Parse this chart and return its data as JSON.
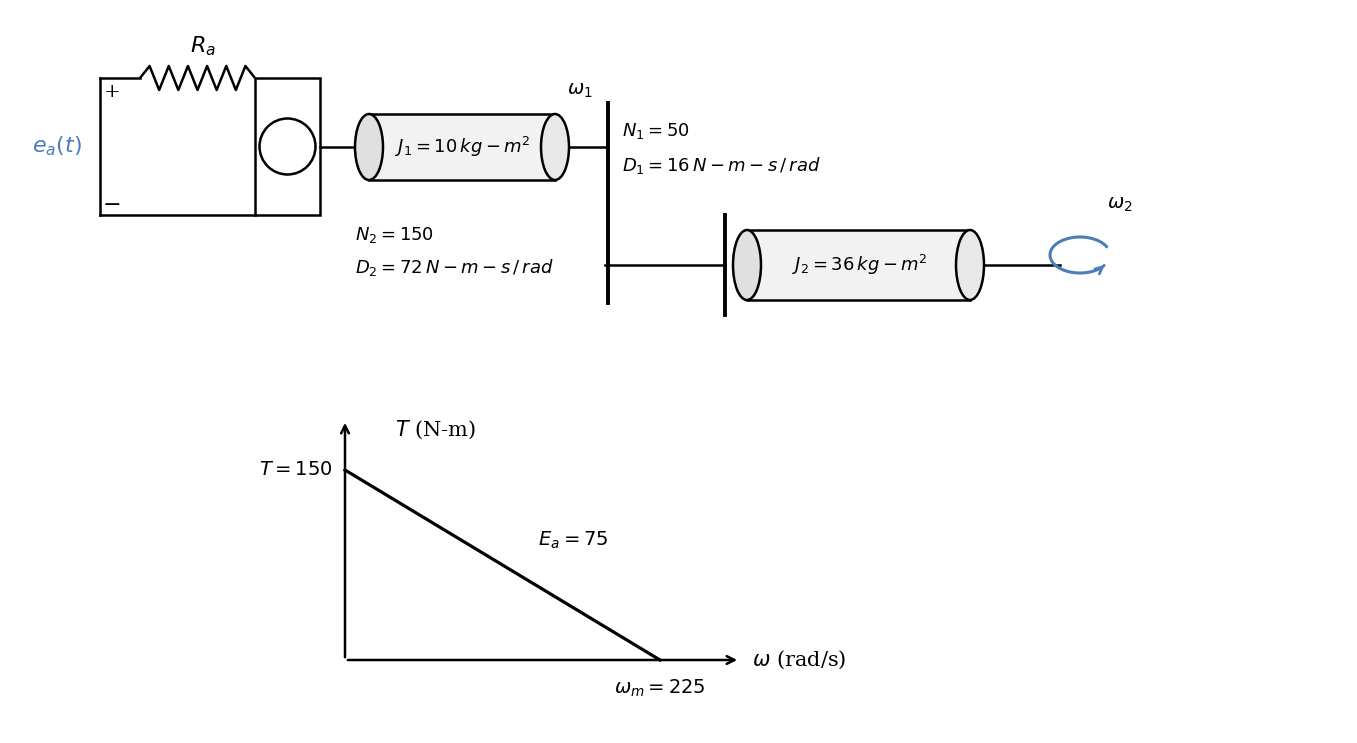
{
  "bg_color": "#ffffff",
  "text_color": "#000000",
  "blue_color": "#4a7fb5",
  "circuit": {
    "ea_label": "$e_a(t)$",
    "plus_label": "+",
    "minus_label": "−",
    "Ra_label": "$R_a$",
    "J1_label": "$J_1 = 10\\,kg - m^2$",
    "J2_label": "$J_2 = 36\\,kg - m^2$",
    "N1_label": "$N_1 = 50$",
    "N2_label": "$N_2 = 150$",
    "D1_label": "$D_1 = 16\\,N - m - s\\,/\\,rad$",
    "D2_label": "$D_2 = 72\\,N - m - s\\,/\\,rad$",
    "omega1_label": "$\\omega_1$",
    "omega2_label": "$\\omega_2$"
  },
  "graph": {
    "T_label": "$T$ (N-m)",
    "omega_label": "$\\omega$ (rad/s)",
    "T_annotation": "$T = 150$",
    "Ea_annotation": "$E_a = 75$",
    "omega_m_annotation": "$\\omega_m = 225$"
  }
}
